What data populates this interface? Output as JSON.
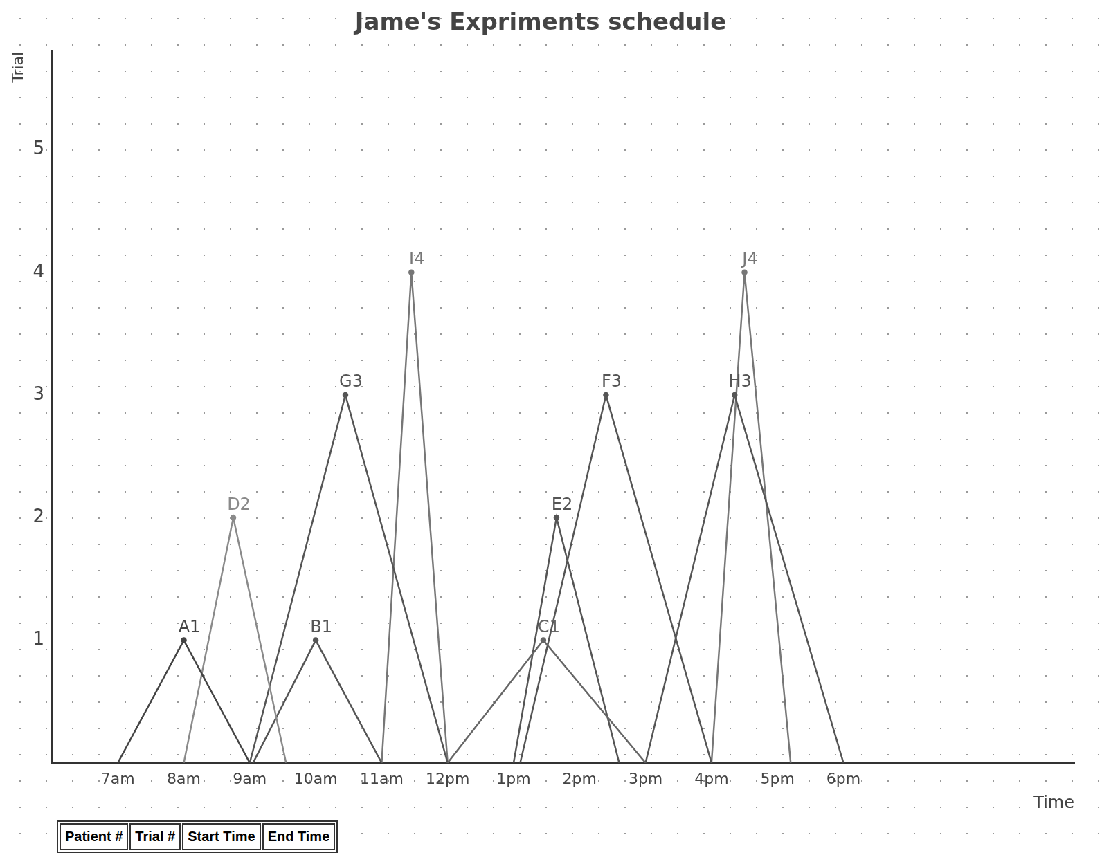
{
  "chart_data": {
    "type": "line",
    "title": "Jame's Expriments schedule",
    "x_label": "Time",
    "y_label": "Trial",
    "xlim": [
      6,
      21.5
    ],
    "xticks": [
      {
        "value": 7,
        "label": "7am"
      },
      {
        "value": 8,
        "label": "8am"
      },
      {
        "value": 9,
        "label": "9am"
      },
      {
        "value": 10,
        "label": "10am"
      },
      {
        "value": 11,
        "label": "11am"
      },
      {
        "value": 12,
        "label": "12pm"
      },
      {
        "value": 13,
        "label": "1pm"
      },
      {
        "value": 14,
        "label": "2pm"
      },
      {
        "value": 15,
        "label": "3pm"
      },
      {
        "value": 16,
        "label": "4pm"
      },
      {
        "value": 17,
        "label": "5pm"
      },
      {
        "value": 18,
        "label": "6pm"
      }
    ],
    "ylim": [
      0,
      5.8
    ],
    "yticks": [
      1,
      2,
      3,
      4,
      5
    ],
    "grid": false,
    "legend": false,
    "series": [
      {
        "name": "A",
        "label": "A1",
        "color": "#444444",
        "x": [
          7,
          8,
          9
        ],
        "values": [
          0,
          1,
          0
        ]
      },
      {
        "name": "D",
        "label": "D2",
        "color": "#8a8a8a",
        "x": [
          8,
          8.75,
          9.55
        ],
        "values": [
          0,
          2,
          0
        ]
      },
      {
        "name": "G",
        "label": "G3",
        "color": "#555555",
        "x": [
          9,
          10.45,
          12
        ],
        "values": [
          0,
          3,
          0
        ]
      },
      {
        "name": "B",
        "label": "B1",
        "color": "#555555",
        "x": [
          9.05,
          10,
          11
        ],
        "values": [
          0,
          1,
          0
        ]
      },
      {
        "name": "I",
        "label": "I4",
        "color": "#777777",
        "x": [
          11,
          11.45,
          12
        ],
        "values": [
          0,
          4,
          0
        ]
      },
      {
        "name": "C",
        "label": "C1",
        "color": "#666666",
        "x": [
          12,
          13.45,
          15
        ],
        "values": [
          0,
          1,
          0
        ]
      },
      {
        "name": "E",
        "label": "E2",
        "color": "#555555",
        "x": [
          13,
          13.65,
          14.6
        ],
        "values": [
          0,
          2,
          0
        ]
      },
      {
        "name": "F",
        "label": "F3",
        "color": "#555555",
        "x": [
          13.1,
          14.4,
          16
        ],
        "values": [
          0,
          3,
          0
        ]
      },
      {
        "name": "H",
        "label": "H3",
        "color": "#555555",
        "x": [
          15,
          16.35,
          18
        ],
        "values": [
          0,
          3,
          0
        ]
      },
      {
        "name": "J",
        "label": "J4",
        "color": "#777777",
        "x": [
          16,
          16.5,
          17.2
        ],
        "values": [
          0,
          4,
          0
        ]
      }
    ]
  },
  "table": {
    "header": [
      "Patient #",
      "Trial #",
      "Start Time",
      "End Time"
    ]
  }
}
